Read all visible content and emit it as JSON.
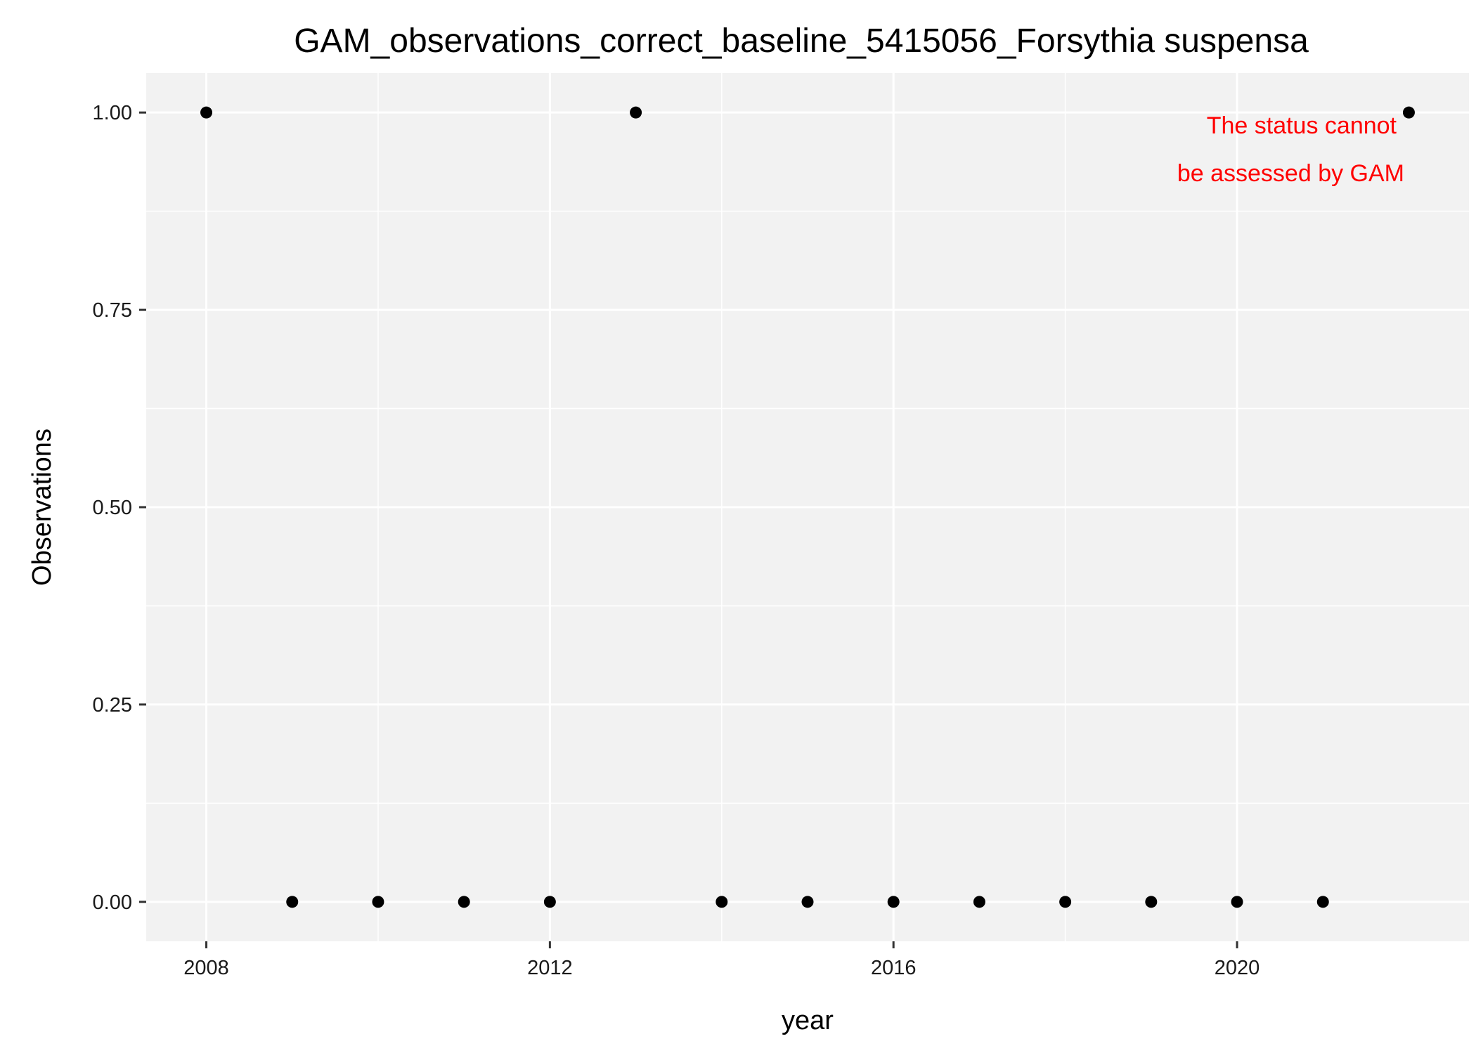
{
  "chart_data": {
    "type": "scatter",
    "title": "GAM_observations_correct_baseline_5415056_Forsythia suspensa",
    "xlabel": "year",
    "ylabel": "Observations",
    "x": [
      2008,
      2009,
      2010,
      2011,
      2012,
      2013,
      2014,
      2015,
      2016,
      2017,
      2018,
      2019,
      2020,
      2021,
      2022
    ],
    "y": [
      1,
      0,
      0,
      0,
      0,
      1,
      0,
      0,
      0,
      0,
      0,
      0,
      0,
      0,
      1
    ],
    "xlim": [
      2007.3,
      2022.7
    ],
    "ylim": [
      -0.05,
      1.05
    ],
    "x_ticks": [
      2008,
      2012,
      2016,
      2020
    ],
    "x_tick_labels": [
      "2008",
      "2012",
      "2016",
      "2020"
    ],
    "y_ticks": [
      0,
      0.25,
      0.5,
      0.75,
      1.0
    ],
    "y_tick_labels": [
      "0.00",
      "0.25",
      "0.50",
      "0.75",
      "1.00"
    ],
    "grid": true,
    "annotation": {
      "lines": [
        "The status cannot",
        "be assessed by GAM"
      ],
      "color": "#ff0000"
    },
    "colors": {
      "panel": "#f2f2f2",
      "grid": "#ffffff",
      "point": "#000000"
    }
  }
}
